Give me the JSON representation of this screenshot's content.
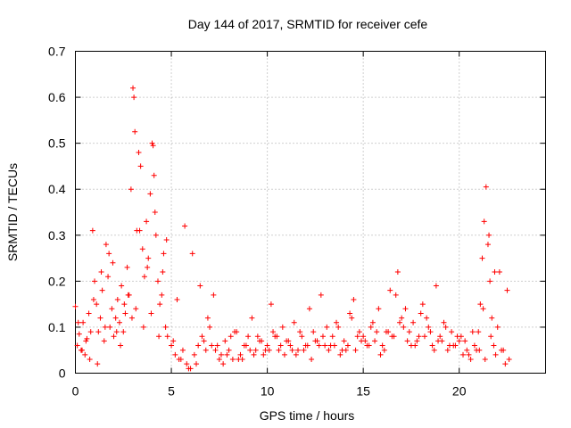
{
  "chart_data": {
    "type": "scatter",
    "title": "Day 144 of 2017, SRMTID for receiver cefe",
    "xlabel": "GPS time / hours",
    "ylabel": "SRMTID / TECUs",
    "xlim": [
      0,
      24.5
    ],
    "ylim": [
      0,
      0.7
    ],
    "xticks": [
      0,
      5,
      10,
      15,
      20
    ],
    "xtick_labels": [
      "0",
      "5",
      "10",
      "15",
      "20"
    ],
    "yticks": [
      0,
      0.1,
      0.2,
      0.3,
      0.4,
      0.5,
      0.6,
      0.7
    ],
    "ytick_labels": [
      "0",
      "0.1",
      "0.2",
      "0.3",
      "0.4",
      "0.5",
      "0.6",
      "0.7"
    ],
    "grid": true,
    "marker": "plus",
    "marker_color": "#ff0000",
    "series": [
      {
        "name": "SRMTID",
        "x": [
          0.0,
          0.1,
          0.2,
          0.3,
          0.4,
          0.5,
          0.6,
          0.7,
          0.8,
          0.9,
          1.0,
          1.1,
          1.2,
          1.3,
          1.4,
          1.5,
          1.6,
          1.7,
          1.8,
          1.9,
          2.0,
          2.1,
          2.2,
          2.3,
          2.4,
          2.5,
          2.6,
          2.7,
          2.8,
          2.9,
          3.0,
          3.05,
          3.1,
          3.2,
          3.3,
          3.4,
          3.5,
          3.6,
          3.7,
          3.8,
          3.9,
          4.0,
          4.05,
          4.1,
          4.2,
          4.3,
          4.4,
          4.5,
          4.6,
          4.7,
          4.8,
          5.0,
          5.2,
          5.4,
          5.6,
          5.8,
          6.0,
          6.2,
          6.4,
          6.6,
          6.8,
          7.0,
          7.2,
          7.4,
          7.6,
          7.8,
          8.0,
          8.2,
          8.4,
          8.6,
          8.8,
          9.0,
          9.2,
          9.4,
          9.6,
          9.8,
          10.0,
          10.2,
          10.4,
          10.6,
          10.8,
          11.0,
          11.2,
          11.4,
          11.6,
          11.8,
          12.0,
          12.2,
          12.4,
          12.6,
          12.8,
          13.0,
          13.2,
          13.4,
          13.6,
          13.8,
          14.0,
          14.2,
          14.4,
          14.6,
          14.8,
          15.0,
          15.2,
          15.4,
          15.6,
          15.8,
          16.0,
          16.2,
          16.4,
          16.6,
          16.8,
          17.0,
          17.2,
          17.4,
          17.6,
          17.8,
          18.0,
          18.2,
          18.4,
          18.6,
          18.8,
          19.0,
          19.2,
          19.4,
          19.6,
          19.8,
          20.0,
          20.2,
          20.4,
          20.6,
          20.8,
          21.0,
          21.1,
          21.2,
          21.3,
          21.4,
          21.5,
          21.6,
          21.7,
          21.8,
          21.9,
          22.0,
          22.2,
          22.4,
          22.6,
          0.15,
          0.55,
          0.95,
          1.35,
          1.75,
          2.15,
          2.55,
          2.95,
          3.35,
          3.75,
          4.15,
          4.55,
          5.1,
          5.5,
          5.9,
          6.3,
          6.7,
          7.1,
          7.5,
          7.9,
          8.3,
          8.7,
          9.1,
          9.5,
          9.9,
          10.3,
          10.7,
          11.1,
          11.5,
          11.9,
          12.3,
          12.7,
          13.1,
          13.5,
          13.9,
          14.3,
          14.7,
          15.1,
          15.5,
          15.9,
          16.3,
          16.7,
          17.1,
          17.5,
          17.9,
          18.3,
          18.7,
          19.1,
          19.5,
          19.9,
          20.3,
          20.7,
          21.05,
          21.35,
          21.65,
          22.1,
          22.5,
          0.35,
          0.75,
          1.15,
          1.55,
          1.95,
          2.35,
          2.75,
          3.15,
          3.55,
          3.95,
          4.35,
          4.75,
          5.3,
          5.7,
          6.1,
          6.5,
          6.9,
          7.3,
          7.7,
          8.1,
          8.5,
          8.9,
          9.3,
          9.7,
          10.1,
          10.5,
          10.9,
          11.3,
          11.7,
          12.1,
          12.5,
          12.9,
          13.3,
          13.7,
          14.1,
          14.5,
          14.9,
          15.3,
          15.7,
          16.1,
          16.5,
          16.9,
          17.3,
          17.7,
          18.1,
          18.5,
          18.9,
          19.3,
          19.7,
          20.1,
          20.5,
          20.9,
          21.25,
          21.55,
          21.85,
          22.3
        ],
        "y": [
          0.145,
          0.06,
          0.085,
          0.05,
          0.11,
          0.04,
          0.075,
          0.13,
          0.09,
          0.31,
          0.2,
          0.15,
          0.09,
          0.12,
          0.18,
          0.07,
          0.28,
          0.21,
          0.1,
          0.14,
          0.08,
          0.12,
          0.16,
          0.11,
          0.19,
          0.09,
          0.13,
          0.23,
          0.17,
          0.4,
          0.62,
          0.6,
          0.525,
          0.31,
          0.48,
          0.45,
          0.27,
          0.21,
          0.33,
          0.25,
          0.39,
          0.5,
          0.495,
          0.43,
          0.3,
          0.2,
          0.15,
          0.17,
          0.26,
          0.1,
          0.08,
          0.06,
          0.04,
          0.03,
          0.05,
          0.02,
          0.01,
          0.04,
          0.06,
          0.08,
          0.05,
          0.1,
          0.17,
          0.06,
          0.04,
          0.07,
          0.05,
          0.03,
          0.09,
          0.04,
          0.06,
          0.08,
          0.12,
          0.05,
          0.07,
          0.04,
          0.06,
          0.15,
          0.08,
          0.05,
          0.1,
          0.07,
          0.06,
          0.11,
          0.05,
          0.08,
          0.06,
          0.14,
          0.09,
          0.07,
          0.17,
          0.06,
          0.05,
          0.08,
          0.11,
          0.04,
          0.07,
          0.06,
          0.12,
          0.05,
          0.09,
          0.08,
          0.06,
          0.1,
          0.07,
          0.14,
          0.06,
          0.09,
          0.18,
          0.08,
          0.22,
          0.12,
          0.14,
          0.09,
          0.11,
          0.07,
          0.13,
          0.08,
          0.1,
          0.06,
          0.19,
          0.08,
          0.11,
          0.05,
          0.09,
          0.06,
          0.07,
          0.04,
          0.05,
          0.03,
          0.06,
          0.09,
          0.15,
          0.25,
          0.33,
          0.405,
          0.28,
          0.2,
          0.12,
          0.06,
          0.04,
          0.1,
          0.05,
          0.02,
          0.03,
          0.11,
          0.07,
          0.16,
          0.22,
          0.26,
          0.09,
          0.15,
          0.12,
          0.31,
          0.23,
          0.35,
          0.22,
          0.07,
          0.03,
          0.01,
          0.02,
          0.07,
          0.06,
          0.03,
          0.04,
          0.09,
          0.03,
          0.05,
          0.08,
          0.05,
          0.09,
          0.06,
          0.07,
          0.04,
          0.05,
          0.03,
          0.06,
          0.1,
          0.06,
          0.05,
          0.13,
          0.08,
          0.07,
          0.11,
          0.04,
          0.09,
          0.17,
          0.1,
          0.06,
          0.08,
          0.12,
          0.05,
          0.07,
          0.06,
          0.08,
          0.07,
          0.09,
          0.05,
          0.03,
          0.08,
          0.22,
          0.18,
          0.05,
          0.03,
          0.02,
          0.1,
          0.24,
          0.06,
          0.17,
          0.14,
          0.1,
          0.13,
          0.08,
          0.29,
          0.16,
          0.32,
          0.26,
          0.19,
          0.12,
          0.05,
          0.02,
          0.08,
          0.03,
          0.06,
          0.04,
          0.07,
          0.05,
          0.08,
          0.04,
          0.05,
          0.09,
          0.06,
          0.07,
          0.08,
          0.06,
          0.1,
          0.05,
          0.16,
          0.07,
          0.06,
          0.09,
          0.05,
          0.08,
          0.11,
          0.07,
          0.06,
          0.15,
          0.09,
          0.07,
          0.1,
          0.06,
          0.08,
          0.04,
          0.05,
          0.14,
          0.3,
          0.22,
          0.05
        ]
      }
    ]
  }
}
